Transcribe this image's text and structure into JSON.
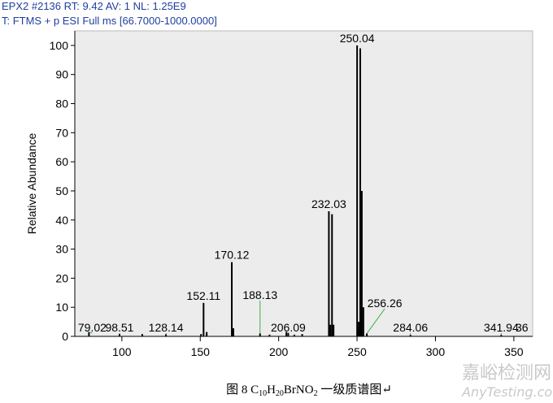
{
  "chart_data": {
    "type": "stem",
    "header": [
      "EPX2 #2136  RT: 9.42  AV: 1  NL: 1.25E9",
      "T: FTMS + p ESI Full ms [66.7000-1000.0000]"
    ],
    "y_label": "Relative Abundance",
    "x": [
      79.02,
      98.51,
      113,
      128.14,
      150.5,
      152.11,
      154.1,
      170.12,
      171.1,
      188.13,
      194.2,
      204.9,
      206.09,
      210,
      215,
      232.03,
      233.0,
      234.03,
      235.0,
      250.04,
      251.04,
      252.04,
      253.04,
      254.04,
      256.26,
      284.06,
      341.94
    ],
    "values": [
      1.5,
      0.8,
      0.8,
      0.7,
      0.8,
      11.5,
      1.5,
      25.5,
      2.8,
      1,
      0.6,
      1.5,
      1.2,
      0.6,
      0.8,
      43,
      4,
      42,
      4,
      100,
      5,
      99,
      50,
      10,
      1,
      0.5,
      0.5
    ],
    "peak_labels": [
      79.02,
      98.51,
      null,
      128.14,
      null,
      152.11,
      null,
      170.12,
      null,
      188.13,
      null,
      null,
      206.09,
      null,
      null,
      232.03,
      null,
      null,
      null,
      250.04,
      null,
      null,
      null,
      null,
      256.26,
      284.06,
      341.94
    ],
    "edge_label": "36",
    "color": "#000000",
    "leader_color": "#3cb043",
    "background": "#ececec",
    "xlim": [
      70,
      362
    ],
    "xticks": [
      100,
      150,
      200,
      250,
      300,
      350
    ],
    "ylim": [
      0,
      105
    ],
    "yticks": [
      0,
      10,
      20,
      30,
      40,
      50,
      60,
      70,
      80,
      90,
      100
    ],
    "caption": [
      "图 8 C",
      "10",
      "H",
      "20",
      "BrNO",
      "2",
      " 一级质谱图↵"
    ],
    "watermark": [
      "嘉峪检测网",
      "AnyTesting.com"
    ]
  }
}
